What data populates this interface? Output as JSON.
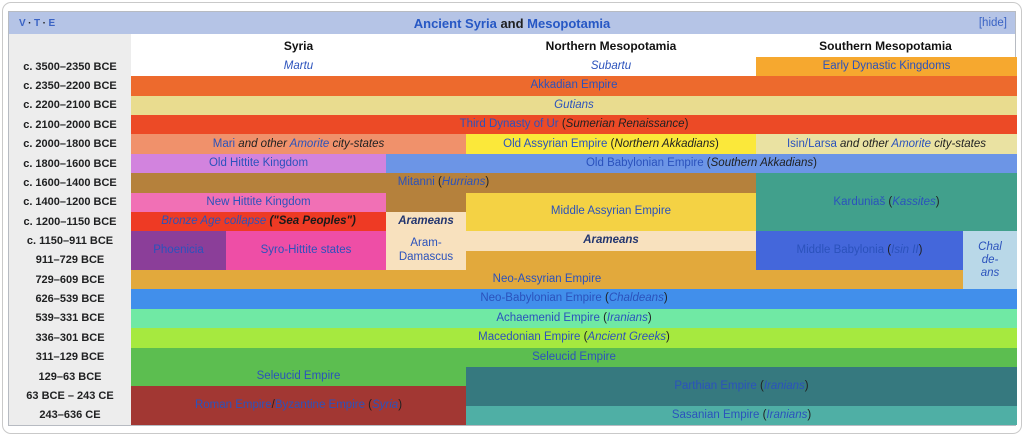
{
  "navbox": {
    "vte": [
      "V",
      "T",
      "E"
    ],
    "vte_separator": "·",
    "title_parts": [
      {
        "text": "Ancient Syria",
        "link": true
      },
      {
        "text": " and ",
        "link": false
      },
      {
        "text": "Mesopotamia",
        "link": true
      }
    ],
    "hide_label": "[hide]"
  },
  "headers": [
    "Syria",
    "Northern Mesopotamia",
    "Southern Mesopotamia"
  ],
  "timeline": {
    "periods": [
      "c. 3500–2350 BCE",
      "c. 2350–2200 BCE",
      "c. 2200–2100 BCE",
      "c. 2100–2000 BCE",
      "c. 2000–1800 BCE",
      "c. 1800–1600 BCE",
      "c. 1600–1400 BCE",
      "c. 1400–1200 BCE",
      "c. 1200–1150 BCE",
      "c. 1150–911 BCE",
      "911–729 BCE",
      "729–609 BCE",
      "626–539 BCE",
      "539–331 BCE",
      "336–301 BCE",
      "311–129 BCE",
      "129–63 BCE",
      "63 BCE – 243 CE",
      "243–636 CE"
    ]
  },
  "cells": {
    "martu": {
      "parts": [
        {
          "t": "Martu",
          "c": "link-italic"
        }
      ]
    },
    "subartu": {
      "parts": [
        {
          "t": "Subartu",
          "c": "link-italic"
        }
      ]
    },
    "early_dynastic": {
      "parts": [
        {
          "t": "Early Dynastic Kingdoms",
          "c": "link"
        }
      ]
    },
    "akkadian": {
      "parts": [
        {
          "t": "Akkadian Empire",
          "c": "link"
        }
      ]
    },
    "gutians": {
      "parts": [
        {
          "t": "Gutians",
          "c": "link-italic"
        }
      ]
    },
    "third_dynasty": {
      "parts": [
        {
          "t": "Third Dynasty of Ur",
          "c": "link"
        },
        {
          "t": " (",
          "c": "plain"
        },
        {
          "t": "Sumerian Renaissance",
          "c": "italic"
        },
        {
          "t": ")",
          "c": "plain"
        }
      ]
    },
    "mari": {
      "parts": [
        {
          "t": "Mari",
          "c": "link"
        },
        {
          "t": " and other ",
          "c": "italic"
        },
        {
          "t": "Amorite",
          "c": "link-italic"
        },
        {
          "t": " city-states",
          "c": "italic"
        }
      ]
    },
    "old_assyrian": {
      "parts": [
        {
          "t": "Old Assyrian Empire",
          "c": "link"
        },
        {
          "t": " (",
          "c": "plain"
        },
        {
          "t": "Northern Akkadians",
          "c": "italic"
        },
        {
          "t": ")",
          "c": "plain"
        }
      ]
    },
    "isin_larsa": {
      "parts": [
        {
          "t": "Isin/Larsa",
          "c": "link"
        },
        {
          "t": " and other ",
          "c": "italic"
        },
        {
          "t": "Amorite",
          "c": "link-italic"
        },
        {
          "t": " city-states",
          "c": "italic"
        }
      ]
    },
    "old_hittite": {
      "parts": [
        {
          "t": "Old Hittite Kingdom",
          "c": "link"
        }
      ]
    },
    "old_babylonian": {
      "parts": [
        {
          "t": "Old Babylonian Empire",
          "c": "link"
        },
        {
          "t": " (",
          "c": "plain"
        },
        {
          "t": "Southern Akkadians",
          "c": "italic"
        },
        {
          "t": ")",
          "c": "plain"
        }
      ]
    },
    "mitanni": {
      "parts": [
        {
          "t": "Mitanni",
          "c": "link"
        },
        {
          "t": " (",
          "c": "plain"
        },
        {
          "t": "Hurrians",
          "c": "link-italic"
        },
        {
          "t": ")",
          "c": "plain"
        }
      ]
    },
    "kardunias": {
      "parts": [
        {
          "t": "Karduniaš",
          "c": "link"
        },
        {
          "t": " (",
          "c": "plain"
        },
        {
          "t": "Kassites",
          "c": "link-italic"
        },
        {
          "t": ")",
          "c": "plain"
        }
      ]
    },
    "new_hittite": {
      "parts": [
        {
          "t": "New Hittite Kingdom",
          "c": "link"
        }
      ]
    },
    "middle_assyrian": {
      "parts": [
        {
          "t": "Middle Assyrian Empire",
          "c": "link"
        }
      ]
    },
    "bronze_age_collapse": {
      "parts": [
        {
          "t": "Bronze Age collapse",
          "c": "link-italic"
        },
        {
          "t": " (\"Sea Peoples\")",
          "c": "bold-italic"
        }
      ]
    },
    "arameans_syria": {
      "parts": [
        {
          "t": "Arameans",
          "c": "navy-italic"
        }
      ]
    },
    "aram_damascus": {
      "parts": [
        {
          "t": "Aram-Damascus",
          "c": "link"
        }
      ]
    },
    "phoenicia": {
      "parts": [
        {
          "t": "Phoenicia",
          "c": "link"
        }
      ]
    },
    "syro_hittite": {
      "parts": [
        {
          "t": "Syro-Hittite states",
          "c": "link"
        }
      ]
    },
    "arameans_north": {
      "parts": [
        {
          "t": "Arameans",
          "c": "navy-italic"
        }
      ]
    },
    "middle_babylonia": {
      "parts": [
        {
          "t": "Middle Babylonia",
          "c": "link"
        },
        {
          "t": " (",
          "c": "plain"
        },
        {
          "t": "Isin II",
          "c": "link-italic"
        },
        {
          "t": ")",
          "c": "plain"
        }
      ]
    },
    "chaldeans": {
      "lines": [
        "Chal",
        "de-",
        "ans"
      ]
    },
    "neo_assyrian": {
      "parts": [
        {
          "t": "Neo-Assyrian Empire",
          "c": "link"
        }
      ]
    },
    "neo_babylonian": {
      "parts": [
        {
          "t": "Neo-Babylonian Empire",
          "c": "link"
        },
        {
          "t": " (",
          "c": "plain"
        },
        {
          "t": "Chaldeans",
          "c": "link-italic"
        },
        {
          "t": ")",
          "c": "plain"
        }
      ]
    },
    "achaemenid": {
      "parts": [
        {
          "t": "Achaemenid Empire",
          "c": "link"
        },
        {
          "t": " (",
          "c": "plain"
        },
        {
          "t": "Iranians",
          "c": "link-italic"
        },
        {
          "t": ")",
          "c": "plain"
        }
      ]
    },
    "macedonian": {
      "parts": [
        {
          "t": "Macedonian Empire",
          "c": "link"
        },
        {
          "t": " (",
          "c": "plain"
        },
        {
          "t": "Ancient Greeks",
          "c": "link-italic"
        },
        {
          "t": ")",
          "c": "plain"
        }
      ]
    },
    "seleucid_full": {
      "parts": [
        {
          "t": "Seleucid Empire",
          "c": "link"
        }
      ]
    },
    "seleucid_syria": {
      "parts": [
        {
          "t": "Seleucid Empire",
          "c": "link"
        }
      ]
    },
    "parthian": {
      "parts": [
        {
          "t": "Parthian Empire",
          "c": "link"
        },
        {
          "t": " (",
          "c": "plain"
        },
        {
          "t": "Iranians",
          "c": "link-italic"
        },
        {
          "t": ")",
          "c": "plain"
        }
      ]
    },
    "roman_byzantine": {
      "parts": [
        {
          "t": "Roman Empire",
          "c": "link"
        },
        {
          "t": "/",
          "c": "plain"
        },
        {
          "t": "Byzantine Empire",
          "c": "link"
        },
        {
          "t": " (",
          "c": "plain"
        },
        {
          "t": "Syria",
          "c": "link-italic"
        },
        {
          "t": ")",
          "c": "plain"
        }
      ]
    },
    "sasanian": {
      "parts": [
        {
          "t": "Sasanian Empire",
          "c": "link"
        },
        {
          "t": " (",
          "c": "plain"
        },
        {
          "t": "Iranians",
          "c": "link-italic"
        },
        {
          "t": ")",
          "c": "plain"
        }
      ]
    }
  },
  "colors": {
    "title_bar": "#B5C4E6",
    "link_text": "#2B52BC",
    "period_column": "#EDEDED",
    "martu_subartu": "#FFFFFF",
    "early_dynastic": "#F6A82F",
    "akkadian": "#ED6A2D",
    "gutians": "#E9DC8F",
    "third_dynasty_of_ur": "#EC4A26",
    "mari": "#F0916B",
    "old_assyrian": "#FBE83A",
    "isin_larsa": "#EAE2A2",
    "old_hittite": "#D283DE",
    "old_babylonian": "#6C95E6",
    "mitanni": "#B5813C",
    "kardunias": "#41A08C",
    "new_hittite": "#F170B5",
    "middle_assyrian": "#F4D244",
    "bronze_age_collapse": "#EE3A24",
    "arameans_cells": "#F8E1BE",
    "phoenicia": "#8B3E99",
    "syro_hittite_states": "#EE4EA6",
    "middle_babylonia": "#4467DB",
    "chaldeans": "#B9D8E8",
    "neo_assyrian": "#E2A93C",
    "neo_babylonian": "#418FEB",
    "achaemenid": "#70E9A4",
    "macedonian": "#A6E93F",
    "seleucid": "#5CBE50",
    "parthian": "#36797F",
    "roman_byzantine": "#A23733",
    "sasanian": "#4FAFA5"
  }
}
